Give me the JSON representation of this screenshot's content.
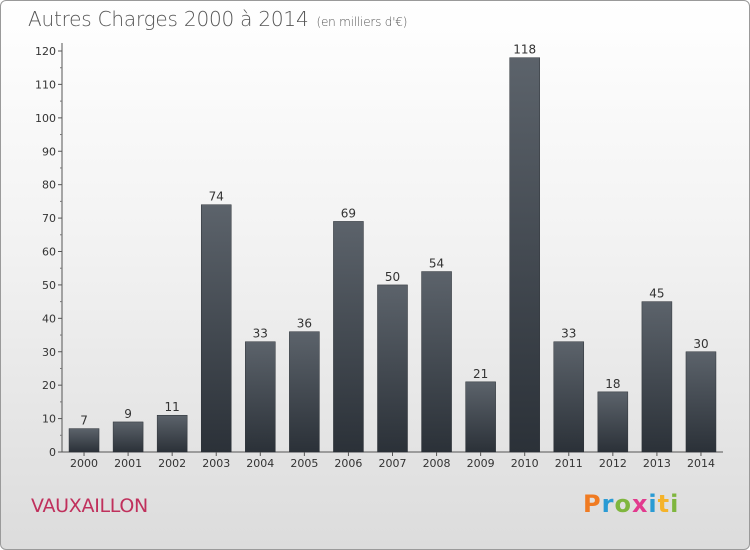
{
  "header": {
    "title": "Autres Charges 2000 à 2014",
    "subtitle": "(en milliers d'€)"
  },
  "footer": {
    "place": "VAUXAILLON",
    "logo": [
      "P",
      "r",
      "o",
      "x",
      "i",
      "t",
      "i"
    ]
  },
  "colors": {
    "title": "#555555",
    "place": "#c0305c",
    "bar_top": "#5c636b",
    "bar_bottom": "#2b3138",
    "logo": [
      "#f07b22",
      "#2a9bd4",
      "#7fb63e",
      "#e23a8e",
      "#2a9bd4",
      "#f5b32a",
      "#7fb63e"
    ]
  },
  "chart_data": {
    "type": "bar",
    "categories": [
      "2000",
      "2001",
      "2002",
      "2003",
      "2004",
      "2005",
      "2006",
      "2007",
      "2008",
      "2009",
      "2010",
      "2011",
      "2012",
      "2013",
      "2014"
    ],
    "values": [
      7,
      9,
      11,
      74,
      33,
      36,
      69,
      50,
      54,
      21,
      118,
      33,
      18,
      45,
      30
    ],
    "title": "Autres Charges 2000 à 2014",
    "subtitle": "(en milliers d'€)",
    "xlabel": "",
    "ylabel": "",
    "ylim": [
      0,
      120
    ],
    "yticks": [
      0,
      10,
      20,
      30,
      40,
      50,
      60,
      70,
      80,
      90,
      100,
      110,
      120
    ],
    "grid": false,
    "data_labels": true
  }
}
